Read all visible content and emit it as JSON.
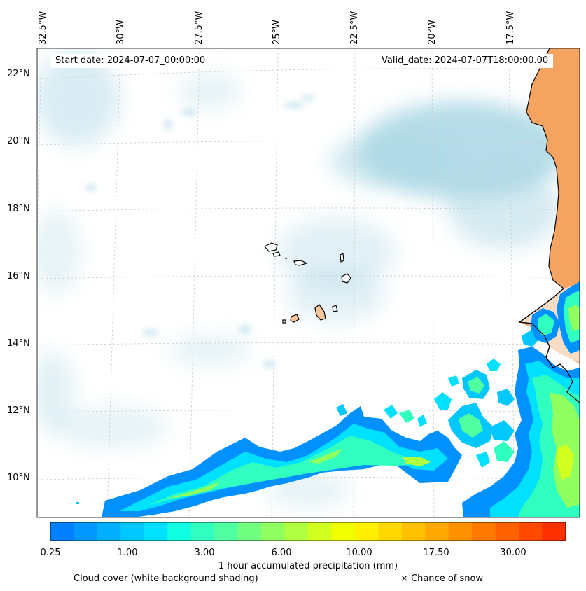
{
  "map": {
    "lon_labels": [
      "32.5°W",
      "30°W",
      "27.5°W",
      "25°W",
      "22.5°W",
      "20°W",
      "17.5°W"
    ],
    "lat_labels": [
      "22°N",
      "20°N",
      "18°N",
      "16°N",
      "14°N",
      "12°N",
      "10°N"
    ],
    "start_date": "Start date: 2024-07-07_00:00:00",
    "valid_date": "Valid_date: 2024-07-07T18:00:00.00",
    "land_color": "#f4a460",
    "cloud_color": "#add8e6",
    "coastline_color": "#000000",
    "gridline_color": "#cccccc",
    "projection": "lambert-conformal",
    "gridlines": true
  },
  "colorbar": {
    "label": "1 hour accumulated precipitation (mm)",
    "ticks": [
      "0.25",
      "1.00",
      "3.00",
      "6.00",
      "10.00",
      "17.50",
      "30.00"
    ],
    "colors": [
      "#0080ff",
      "#0098ff",
      "#00b0ff",
      "#00c8ff",
      "#00e0ff",
      "#10ffe0",
      "#30ffc0",
      "#50ffa0",
      "#70ff80",
      "#90ff60",
      "#b0ff40",
      "#d0ff20",
      "#f0ff00",
      "#fff000",
      "#ffd800",
      "#ffc000",
      "#ffa800",
      "#ff9000",
      "#ff7800",
      "#ff6000",
      "#ff4800",
      "#ff3000"
    ]
  },
  "legend": {
    "cloud_cover": "Cloud cover (white background shading)",
    "snow": "× Chance of snow"
  }
}
